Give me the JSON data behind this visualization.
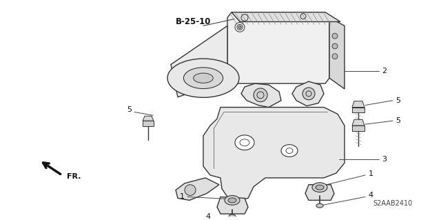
{
  "background_color": "#ffffff",
  "part_label": "B-25-10",
  "diagram_code": "S2AAB2410",
  "fr_label": "FR.",
  "line_color": "#333333",
  "fill_light": "#e0e0e0",
  "fill_mid": "#c8c8c8"
}
